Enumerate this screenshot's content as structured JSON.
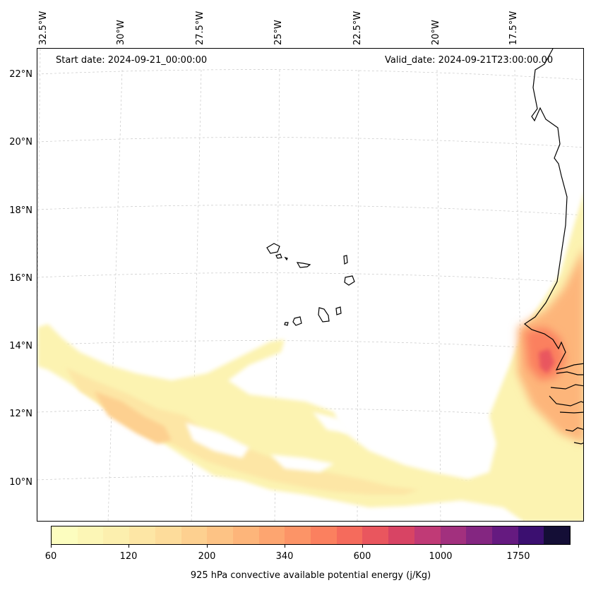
{
  "map": {
    "start_date": "Start date: 2024-09-21_00:00:00",
    "valid_date": "Valid_date: 2024-09-21T23:00:00.00",
    "lon_labels": [
      "32.5°W",
      "30°W",
      "27.5°W",
      "25°W",
      "22.5°W",
      "20°W",
      "17.5°W"
    ],
    "lat_labels": [
      "22°N",
      "20°N",
      "18°N",
      "16°N",
      "14°N",
      "12°N",
      "10°N"
    ]
  },
  "colorbar": {
    "label": "925 hPa convective available potential energy (j/Kg)",
    "tick_labels": [
      "60",
      "120",
      "200",
      "340",
      "600",
      "1000",
      "1750"
    ],
    "colors": [
      "#fcfdbf",
      "#fcf6b6",
      "#fcefae",
      "#fde6a5",
      "#fddc9b",
      "#fdd090",
      "#fdc385",
      "#fdb57a",
      "#fda570",
      "#fc9467",
      "#fb805f",
      "#f56b5c",
      "#e9565e",
      "#d84464",
      "#c03a76",
      "#a2307e",
      "#842681",
      "#651a80",
      "#3b0f70",
      "#140e36"
    ]
  },
  "colors": {
    "coastline": "#000000",
    "gridline": "#c8c8c8"
  }
}
